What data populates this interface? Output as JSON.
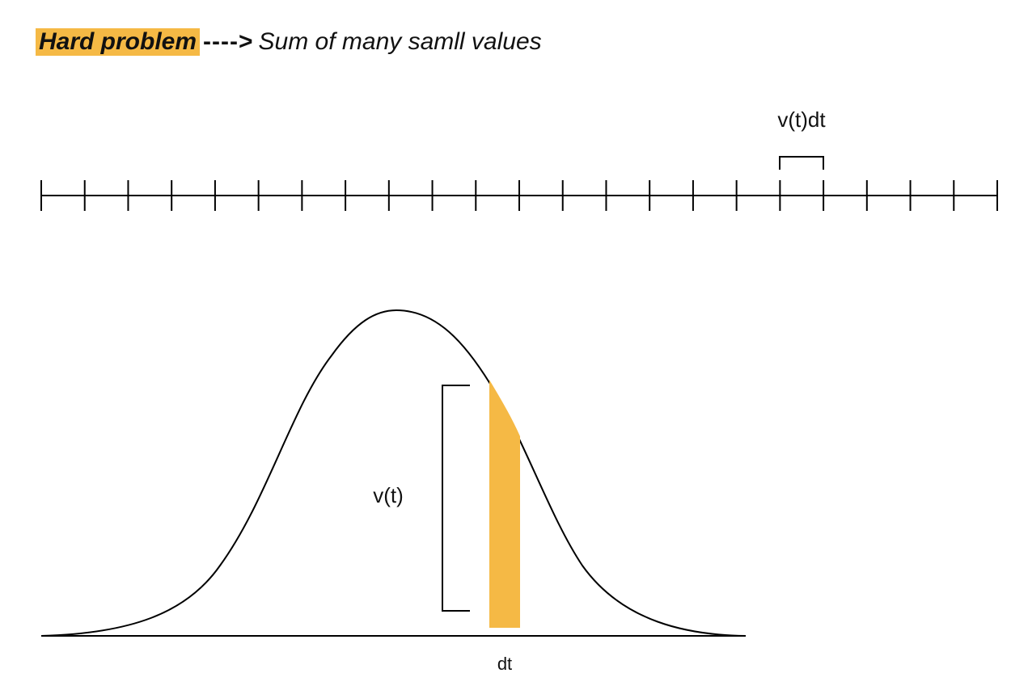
{
  "title": {
    "highlight_text": "Hard problem",
    "arrow_text": "---->",
    "rest_text": "Sum of many samll values"
  },
  "number_line": {
    "tick_count": 23,
    "bracket_label": "v(t)dt",
    "bracket_tick_index": 17
  },
  "curve": {
    "height_label": "v(t)",
    "width_label": "dt"
  },
  "colors": {
    "accent": "#f5b945",
    "stroke": "#000000"
  }
}
